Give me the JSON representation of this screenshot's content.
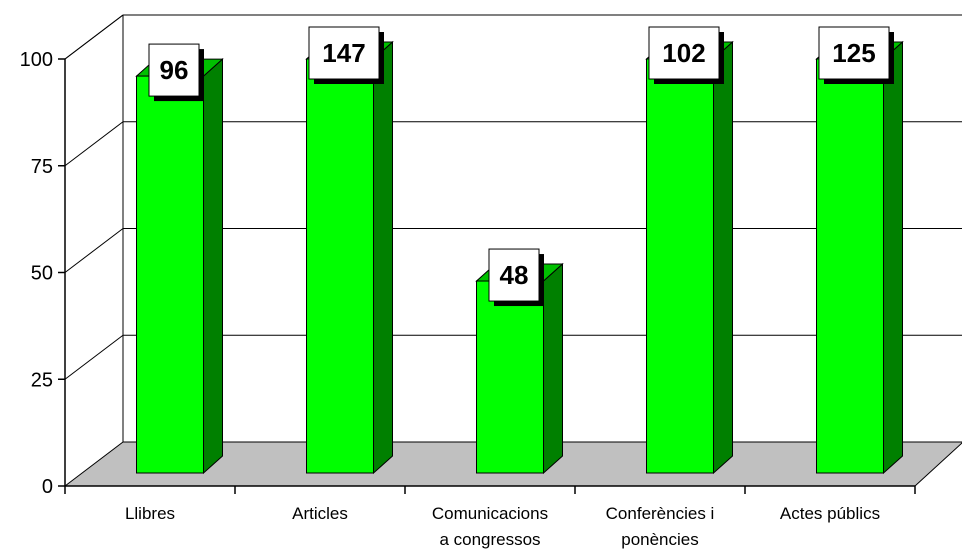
{
  "chart_data": {
    "type": "bar",
    "style": "3d",
    "categories": [
      [
        "Llibres"
      ],
      [
        "Articles"
      ],
      [
        "Comunicacions",
        "a congressos"
      ],
      [
        "Conferències i",
        "ponències"
      ],
      [
        "Actes públics"
      ]
    ],
    "values": [
      96,
      147,
      48,
      102,
      125
    ],
    "value_labels": [
      "96",
      "147",
      "48",
      "102",
      "125"
    ],
    "ylim": [
      0,
      100
    ],
    "yticks": [
      "0",
      "25",
      "50",
      "75",
      "100"
    ],
    "title": "",
    "xlabel": "",
    "ylabel": "",
    "grid": true,
    "legend": "none",
    "colors": {
      "bar_front": "#00ff00",
      "bar_side": "#008000",
      "bar_top": "#00c000",
      "floor": "#c0c0c0",
      "grid": "#000000",
      "label_box": "#ffffff"
    }
  }
}
